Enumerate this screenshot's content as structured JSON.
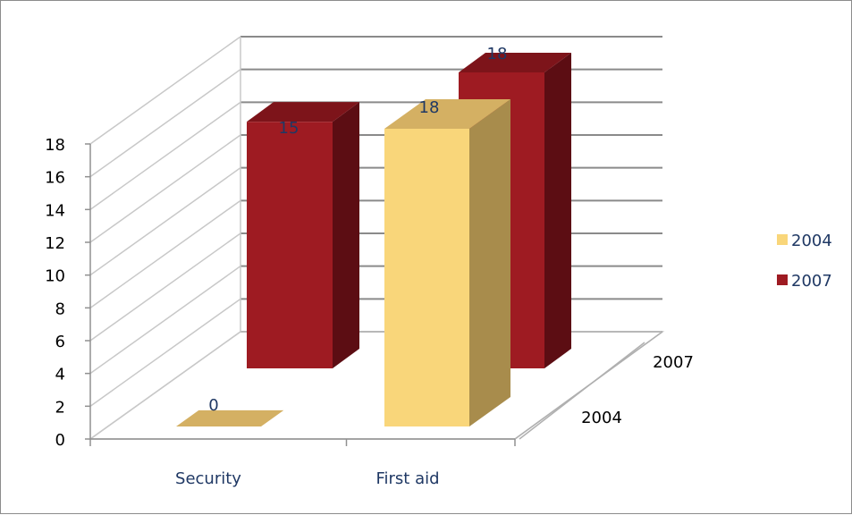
{
  "chart_data": {
    "type": "bar",
    "categories": [
      "Security",
      "First aid"
    ],
    "series": [
      {
        "name": "2004",
        "values": [
          0,
          18
        ],
        "labels": [
          "0",
          "18"
        ],
        "color": "#f9d67a",
        "side_color": "#a88c4c",
        "top_color": "#d4b063"
      },
      {
        "name": "2007",
        "values": [
          15,
          18
        ],
        "labels": [
          "15",
          "18"
        ],
        "color": "#9e1b22",
        "side_color": "#5c0d13",
        "top_color": "#7d141a"
      }
    ],
    "depth_labels": [
      "2004",
      "2007"
    ],
    "y_ticks": [
      "0",
      "2",
      "4",
      "6",
      "8",
      "10",
      "12",
      "14",
      "16",
      "18"
    ],
    "ylim": [
      0,
      18
    ],
    "grid": true,
    "legend_position": "right",
    "gridline_color": "#8a8a8a",
    "axis_text_color": "#1f3864"
  }
}
